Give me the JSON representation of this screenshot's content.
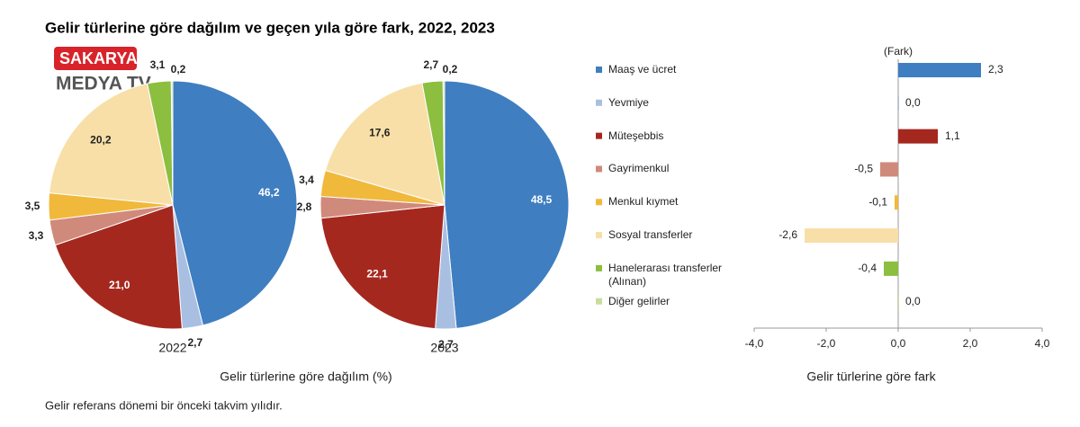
{
  "title": "Gelir türlerine göre dağılım ve geçen yıla göre fark, 2022, 2023",
  "footnote": "Gelir referans dönemi bir önceki takvim yılıdır.",
  "logo": {
    "line1": "SAKARYA",
    "line2": "MEDYA TV"
  },
  "pies_caption": "Gelir türlerine göre dağılım (%)",
  "chart_data": [
    {
      "type": "pie",
      "title": "2022",
      "values": [
        46.2,
        2.7,
        21.0,
        3.3,
        3.5,
        20.2,
        3.1,
        0.2
      ],
      "value_labels": [
        "46,2",
        "2,7",
        "21,0",
        "3,3",
        "3,5",
        "20,2",
        "3,1",
        "0,2"
      ]
    },
    {
      "type": "pie",
      "title": "2023",
      "values": [
        48.5,
        2.7,
        22.1,
        2.8,
        3.4,
        17.6,
        2.7,
        0.2
      ],
      "value_labels": [
        "48,5",
        "2,7",
        "22,1",
        "2,8",
        "3,4",
        "17,6",
        "2,7",
        "0,2"
      ]
    },
    {
      "type": "bar",
      "orientation": "horizontal",
      "xlabel": "Gelir türlerine göre fark",
      "annotation": "(Fark)",
      "categories": [
        "Maaş ve ücret",
        "Yevmiye",
        "Müteşebbis",
        "Gayrimenkul",
        "Menkul kıymet",
        "Sosyal transferler",
        "Hanelerarası transferler (Alınan)",
        "Diğer gelirler"
      ],
      "colors": [
        "#3f7ec1",
        "#a9bfe2",
        "#a5281f",
        "#d08a7b",
        "#f0b93b",
        "#f8dfa8",
        "#8cbe3f",
        "#c9dd9d"
      ],
      "values": [
        2.3,
        0.0,
        1.1,
        -0.5,
        -0.1,
        -2.6,
        -0.4,
        0.0
      ],
      "value_labels": [
        "2,3",
        "0,0",
        "1,1",
        "-0,5",
        "-0,1",
        "-2,6",
        "-0,4",
        "0,0"
      ],
      "xlim": [
        -4,
        4
      ],
      "xticks": [
        {
          "value": -4,
          "label": "-4,0"
        },
        {
          "value": -2,
          "label": "-2,0"
        },
        {
          "value": 0,
          "label": "0,0"
        },
        {
          "value": 2,
          "label": "2,0"
        },
        {
          "value": 4,
          "label": "4,0"
        }
      ]
    }
  ]
}
